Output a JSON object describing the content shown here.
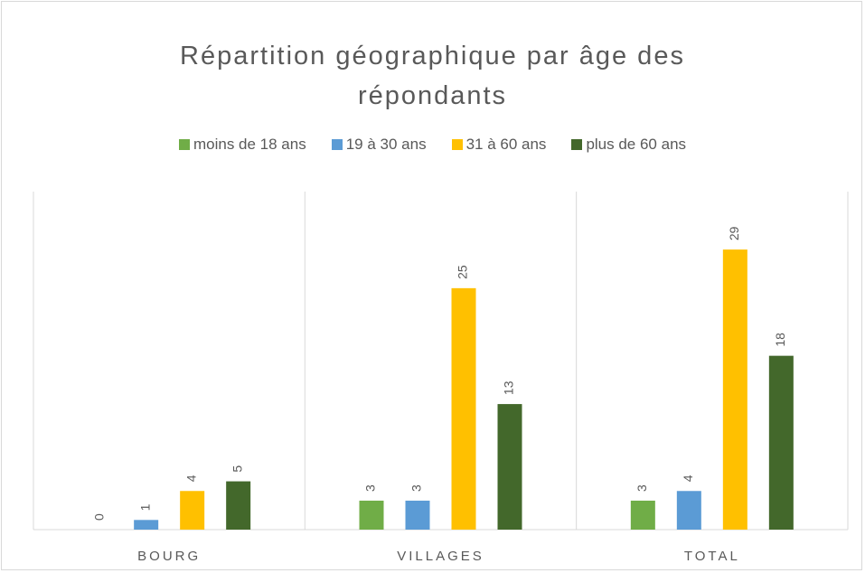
{
  "chart_data": {
    "type": "bar",
    "title": "Répartition géographique par âge des répondants",
    "categories": [
      "BOURG",
      "VILLAGES",
      "TOTAL"
    ],
    "series": [
      {
        "name": "moins de 18 ans",
        "color": "#70ad47",
        "values": [
          0,
          3,
          3
        ]
      },
      {
        "name": "19 à 30 ans",
        "color": "#5b9bd5",
        "values": [
          1,
          3,
          4
        ]
      },
      {
        "name": "31 à 60 ans",
        "color": "#ffc000",
        "values": [
          4,
          25,
          29
        ]
      },
      {
        "name": "plus de 60 ans",
        "color": "#43682b",
        "values": [
          5,
          13,
          18
        ]
      }
    ],
    "ylim": [
      0,
      35
    ],
    "legend": "top"
  }
}
